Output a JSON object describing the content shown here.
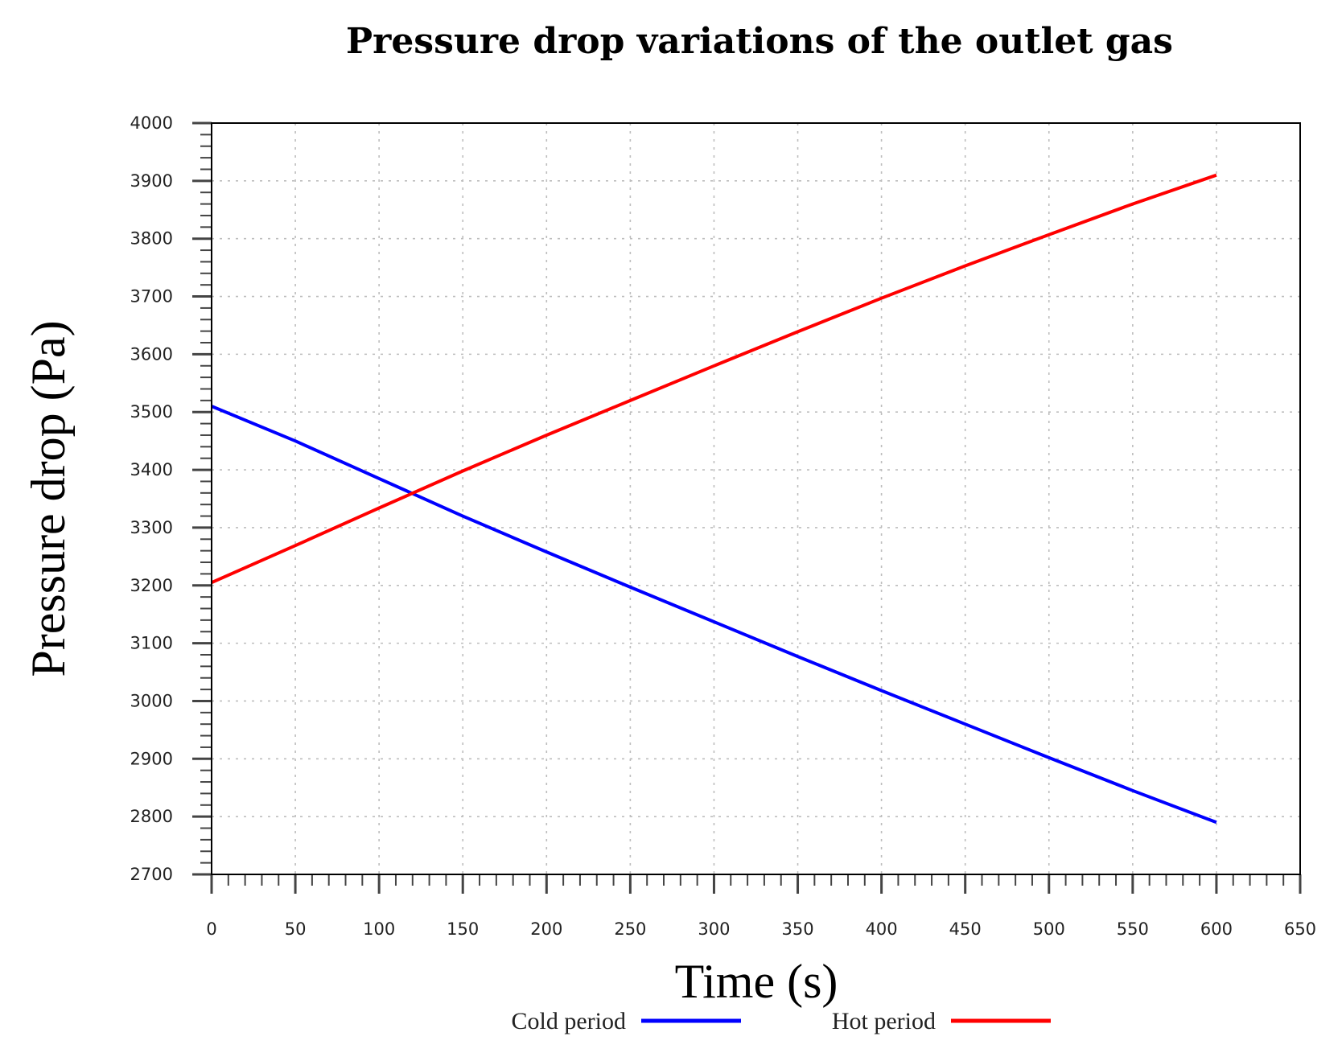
{
  "chart_data": {
    "type": "line",
    "title": "Pressure drop variations of the outlet gas",
    "xlabel": "Time (s)",
    "ylabel": "Pressure drop (Pa)",
    "xlim": [
      0,
      650
    ],
    "ylim": [
      2700,
      4000
    ],
    "x_ticks": [
      0,
      50,
      100,
      150,
      200,
      250,
      300,
      350,
      400,
      450,
      500,
      550,
      600,
      650
    ],
    "y_ticks": [
      2700,
      2800,
      2900,
      3000,
      3100,
      3200,
      3300,
      3400,
      3500,
      3600,
      3700,
      3800,
      3900,
      4000
    ],
    "grid": true,
    "legend_position": "bottom-center",
    "series": [
      {
        "name": "Cold period",
        "color": "#0000ff",
        "x": [
          0,
          50,
          100,
          150,
          200,
          250,
          300,
          350,
          400,
          450,
          500,
          550,
          600
        ],
        "y": [
          3510,
          3450,
          3385,
          3320,
          3258,
          3197,
          3137,
          3077,
          3018,
          2960,
          2902,
          2845,
          2790
        ]
      },
      {
        "name": "Hot period",
        "color": "#ff0000",
        "x": [
          0,
          50,
          100,
          150,
          200,
          250,
          300,
          350,
          400,
          450,
          500,
          550,
          600
        ],
        "y": [
          3205,
          3269,
          3334,
          3398,
          3460,
          3520,
          3580,
          3639,
          3697,
          3753,
          3807,
          3860,
          3910
        ]
      }
    ]
  }
}
